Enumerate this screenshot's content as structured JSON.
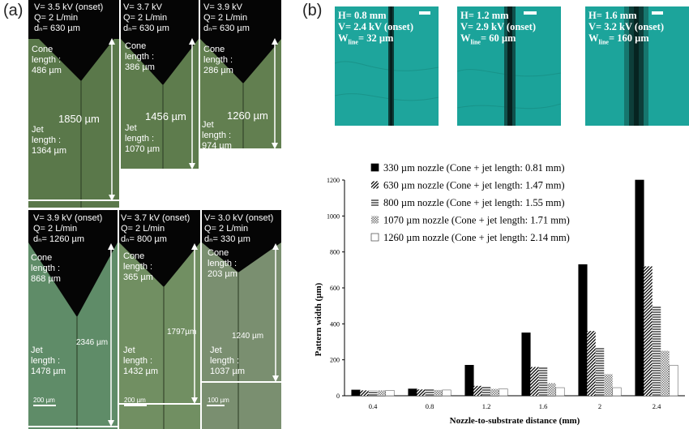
{
  "panel_a_label": "(a)",
  "panel_b_label": "(b)",
  "top_row": [
    {
      "params": [
        "V= 3.5 kV (onset)",
        "Q= 2 L/min",
        "dₙ= 630 µm"
      ],
      "cone": [
        "Cone",
        "length :",
        "486 µm"
      ],
      "jet": [
        "Jet",
        "length :",
        "1364 µm"
      ],
      "total": "1850 µm"
    },
    {
      "params": [
        "V= 3.7 kV",
        "Q= 2 L/min",
        "dₙ= 630 µm"
      ],
      "cone": [
        "Cone",
        "length :",
        "386 µm"
      ],
      "jet": [
        "Jet",
        "length :",
        "1070 µm"
      ],
      "total": "1456 µm"
    },
    {
      "params": [
        "V= 3.9 kV",
        "Q= 2 L/min",
        "dₙ= 630 µm"
      ],
      "cone": [
        "Cone",
        "length :",
        "286 µm"
      ],
      "jet": [
        "Jet",
        "length :",
        "974 µm"
      ],
      "total": "1260 µm"
    }
  ],
  "bottom_row": [
    {
      "params": [
        "V= 3.9 kV (onset)",
        "Q= 2 L/min",
        "dₙ= 1260 µm"
      ],
      "cone": [
        "Cone",
        "length :",
        "868 µm"
      ],
      "jet": [
        "Jet",
        "length :",
        "1478 µm"
      ],
      "total": "2346 µm",
      "scale": "200 µm"
    },
    {
      "params": [
        "V= 3.7 kV (onset)",
        "Q= 2 L/min",
        "dₙ= 800 µm"
      ],
      "cone": [
        "Cone",
        "length :",
        "365 µm"
      ],
      "jet": [
        "Jet",
        "length :",
        "1432 µm"
      ],
      "total": "1797µm",
      "scale": "200 µm"
    },
    {
      "params": [
        "V= 3.0 kV (onset)",
        "Q= 2 L/min",
        "dₙ= 330 µm"
      ],
      "cone": [
        "Cone",
        "length :",
        "203 µm"
      ],
      "jet": [
        "Jet",
        "length :",
        "1037 µm"
      ],
      "total": "1240 µm",
      "scale": "100 µm"
    }
  ],
  "line_images": [
    {
      "h": "H= 0.8 mm",
      "v": "V= 2.4 kV (onset)",
      "w_prefix": "W",
      "w_sub": "line",
      "w_value": "= 32 µm"
    },
    {
      "h": "H= 1.2 mm",
      "v": "V= 2.9 kV (onset)",
      "w_prefix": "W",
      "w_sub": "line",
      "w_value": "= 60 µm"
    },
    {
      "h": "H= 1.6 mm",
      "v": "V= 3.2 kV (onset)",
      "w_prefix": "W",
      "w_sub": "line",
      "w_value": "= 160 µm"
    }
  ],
  "colors": {
    "cone_black": "#050505",
    "top_bg": "#5c7a4a",
    "bottom_bg": "#6b8a6a",
    "teal": "#1aa39b"
  },
  "chart_data": {
    "type": "bar",
    "xlabel": "Nozzle-to-substrate distance (mm)",
    "ylabel": "Pattern width (µm)",
    "ylim": [
      0,
      1200
    ],
    "yticks": [
      0,
      200,
      400,
      600,
      800,
      1000,
      1200
    ],
    "categories": [
      "0.4",
      "0.8",
      "1.2",
      "1.6",
      "2",
      "2.4"
    ],
    "legend_position": "top-left",
    "series": [
      {
        "name": "330 µm nozzle (Cone + jet length: 0.81 mm)",
        "pattern": "solid",
        "values": [
          32,
          38,
          170,
          350,
          730,
          1200
        ]
      },
      {
        "name": "630 µm nozzle (Cone + jet length: 1.47 mm)",
        "pattern": "diagonal",
        "values": [
          30,
          35,
          55,
          160,
          360,
          720
        ]
      },
      {
        "name": "800 µm nozzle (Cone + jet length: 1.55 mm)",
        "pattern": "horizontal",
        "values": [
          30,
          35,
          50,
          160,
          265,
          500
        ]
      },
      {
        "name": "1070 µm nozzle (Cone + jet length: 1.71 mm)",
        "pattern": "crosshatch",
        "values": [
          30,
          32,
          38,
          70,
          120,
          250
        ]
      },
      {
        "name": "1260 µm nozzle (Cone + jet length: 2.14 mm)",
        "pattern": "white",
        "values": [
          30,
          32,
          38,
          45,
          45,
          170
        ]
      }
    ]
  }
}
